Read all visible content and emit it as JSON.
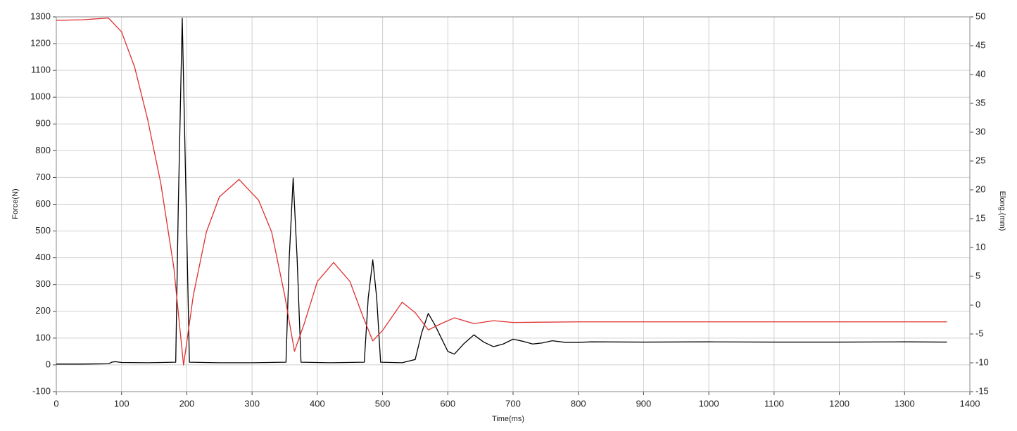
{
  "chart_data": {
    "type": "line",
    "xlabel": "Time(ms)",
    "ylabel": "Force(N)",
    "y2label": "Elong.(mm)",
    "xlim": [
      0,
      1400
    ],
    "xticks": [
      0,
      100,
      200,
      300,
      400,
      500,
      600,
      700,
      800,
      900,
      1000,
      1100,
      1200,
      1300,
      1400
    ],
    "ylim": [
      -100,
      1300
    ],
    "yticks": [
      -100,
      0,
      100,
      200,
      300,
      400,
      500,
      600,
      700,
      800,
      900,
      1000,
      1100,
      1200,
      1300
    ],
    "y2lim": [
      -15,
      50
    ],
    "y2ticks": [
      -15,
      -10,
      -5,
      0,
      5,
      10,
      15,
      20,
      25,
      30,
      35,
      40,
      45,
      50
    ],
    "grid": true,
    "series": [
      {
        "color": "#000000",
        "x": [
          0,
          40,
          80,
          85,
          90,
          100,
          140,
          183,
          187,
          193,
          199,
          204,
          250,
          300,
          352,
          357,
          363,
          369,
          375,
          420,
          472,
          478,
          485,
          491,
          497,
          530,
          550,
          560,
          570,
          580,
          600,
          610,
          625,
          640,
          655,
          670,
          685,
          700,
          715,
          730,
          745,
          760,
          780,
          800,
          820,
          900,
          1000,
          1100,
          1200,
          1300,
          1365
        ],
        "values": [
          3,
          3,
          4,
          10,
          12,
          9,
          8,
          10,
          600,
          1295,
          600,
          10,
          8,
          8,
          10,
          400,
          698,
          400,
          10,
          8,
          10,
          250,
          392,
          250,
          10,
          8,
          20,
          120,
          192,
          150,
          50,
          40,
          80,
          112,
          85,
          68,
          78,
          96,
          88,
          78,
          82,
          90,
          84,
          84,
          86,
          85,
          86,
          85,
          85,
          86,
          85
        ]
      },
      {
        "color": "#e03030",
        "axis": "y2",
        "x": [
          0,
          40,
          80,
          100,
          120,
          140,
          160,
          180,
          195,
          210,
          230,
          250,
          280,
          310,
          330,
          350,
          365,
          380,
          400,
          425,
          450,
          470,
          485,
          500,
          530,
          550,
          570,
          590,
          610,
          640,
          670,
          700,
          800,
          900,
          1000,
          1100,
          1200,
          1300,
          1365
        ],
        "values": [
          49.4,
          49.5,
          49.8,
          47.4,
          41.3,
          32.2,
          21.2,
          6.6,
          -10.4,
          1.7,
          12.7,
          18.8,
          21.8,
          18.2,
          12.7,
          1.7,
          -8.0,
          -3.2,
          4.1,
          7.4,
          4.1,
          -2.0,
          -6.2,
          -4.4,
          0.5,
          -1.3,
          -4.3,
          -3.2,
          -2.2,
          -3.2,
          -2.7,
          -3.0,
          -2.9,
          -2.9,
          -2.9,
          -2.9,
          -2.9,
          -2.9,
          -2.9
        ]
      }
    ]
  }
}
